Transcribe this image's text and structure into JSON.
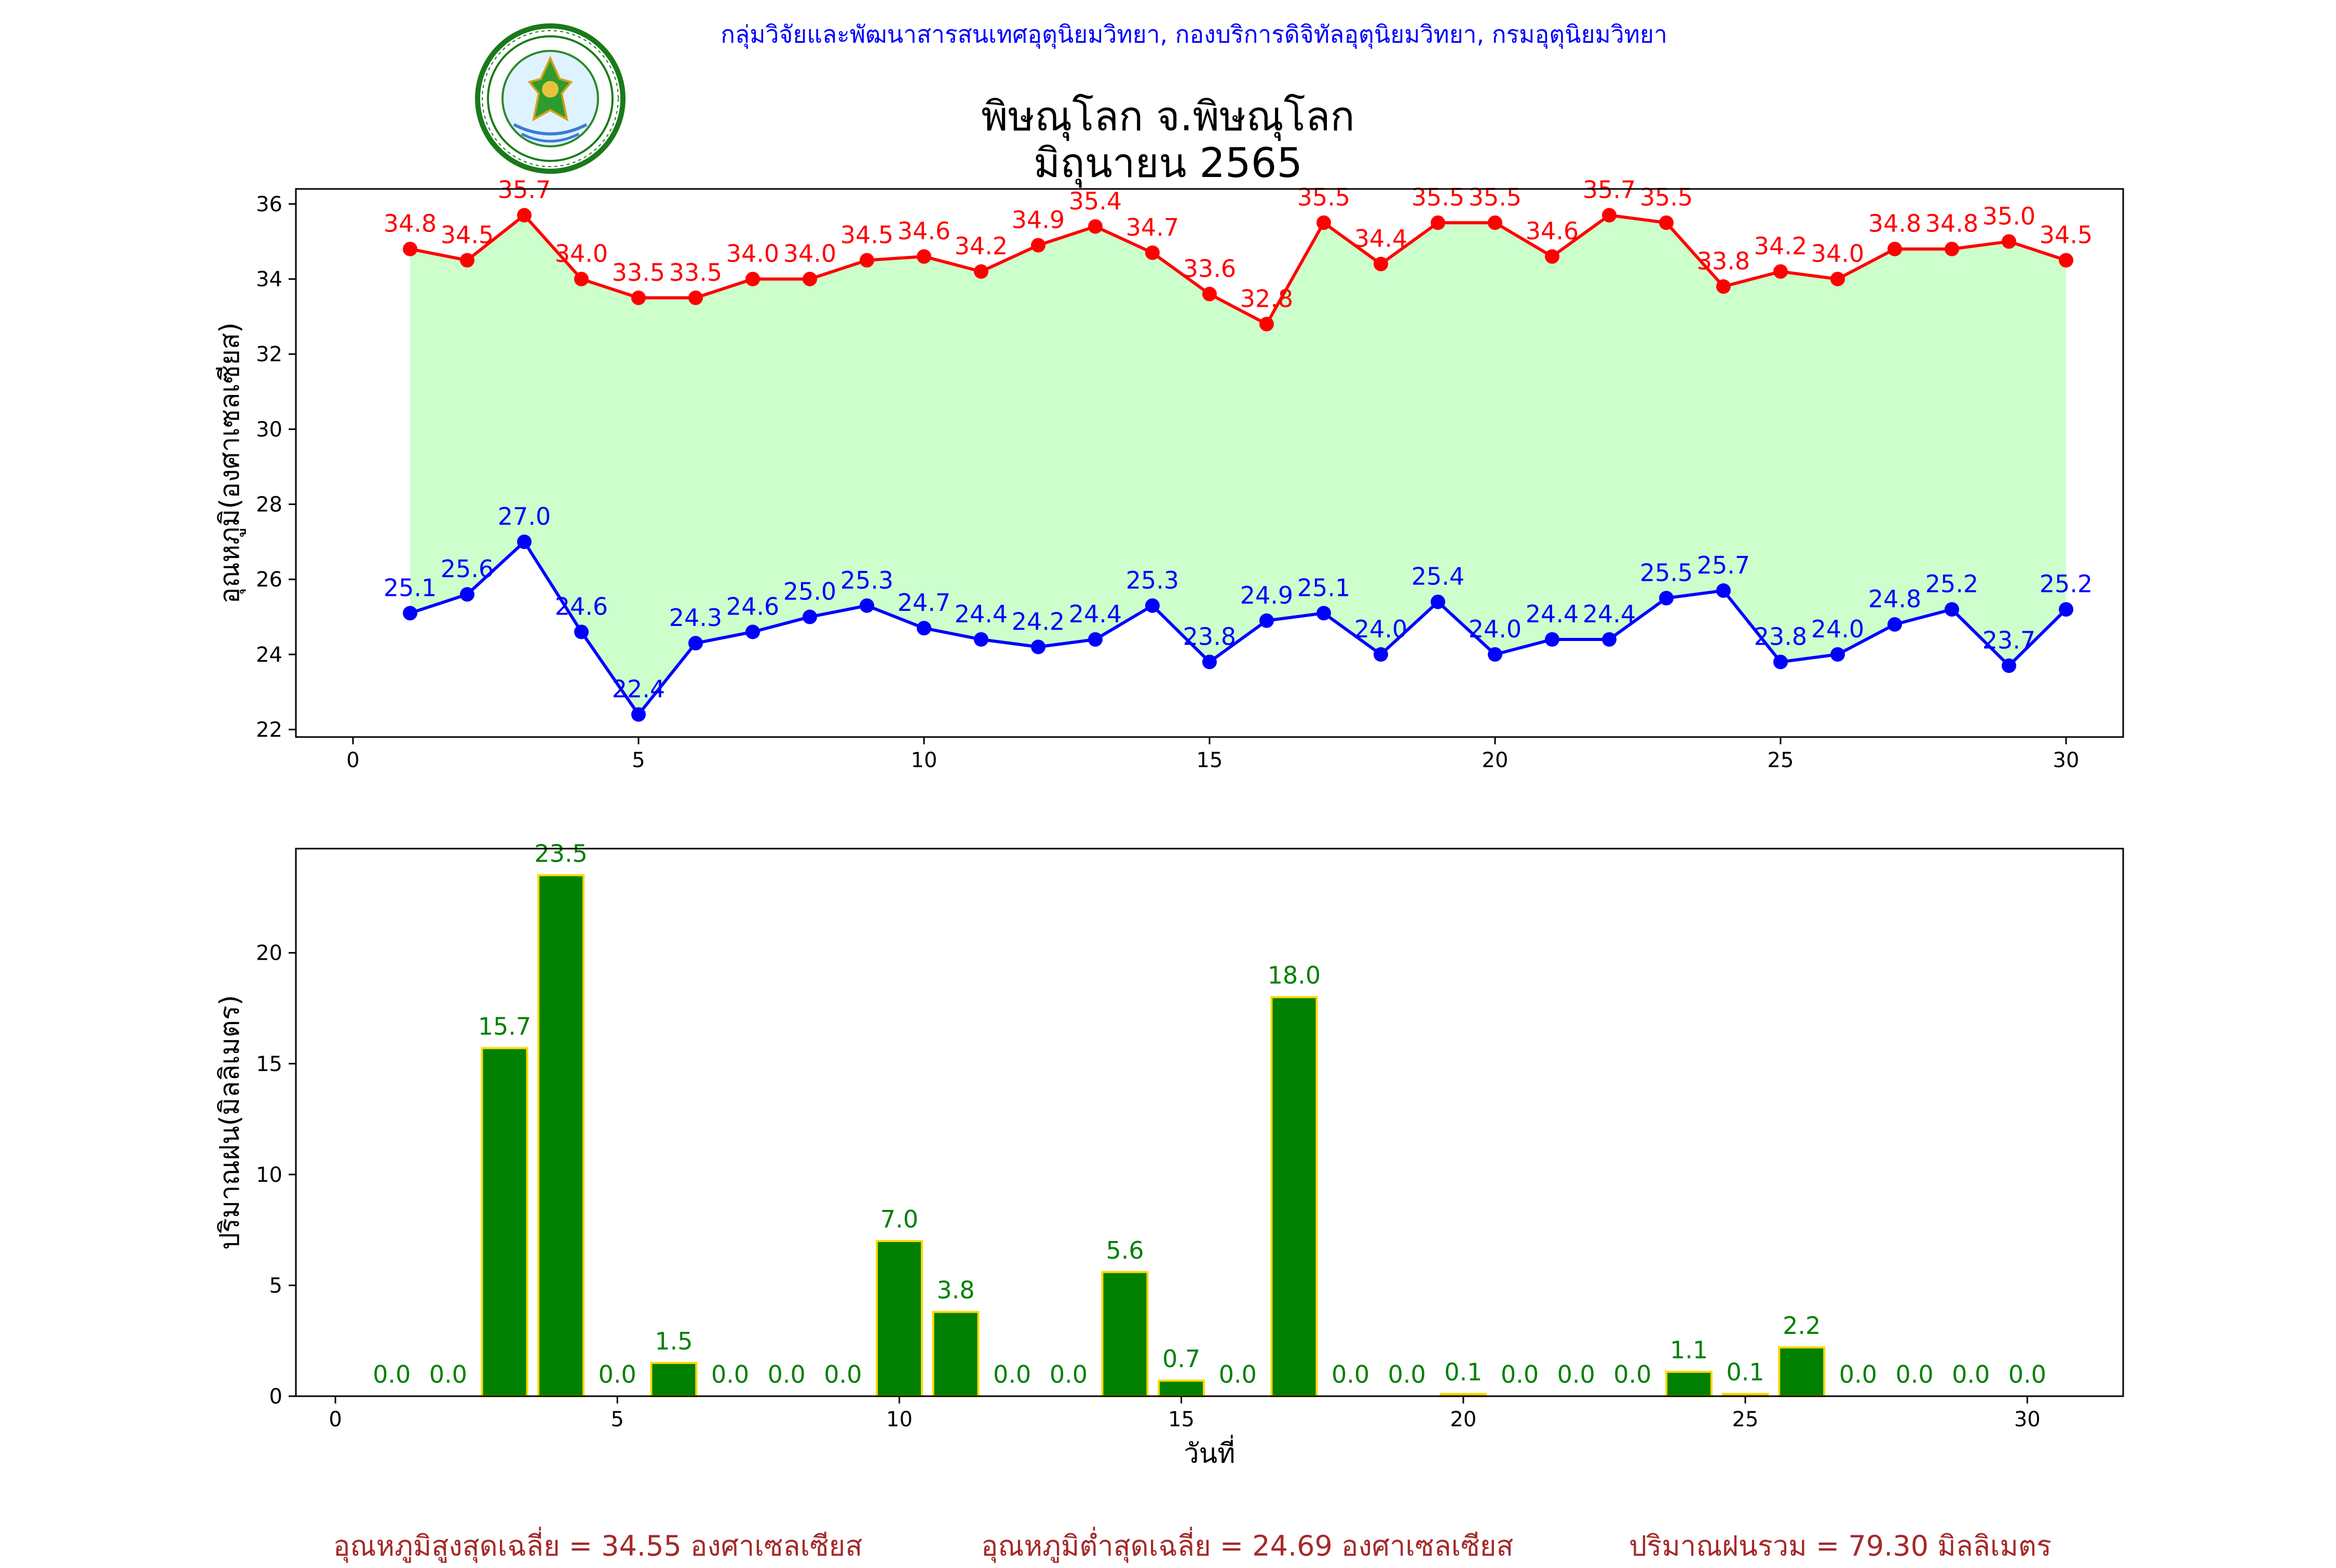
{
  "header": {
    "agency": "กลุ่มวิจัยและพัฒนาสารสนเทศอุตุนิยมวิทยา, กองบริการดิจิทัลอุตุนิยมวิทยา, กรมอุตุนิยมวิทยา",
    "title": "พิษณุโลก จ.พิษณุโลก",
    "subtitle": "มิถุนายน 2565",
    "logo_icon": "meteorological-department-seal-icon",
    "logo_text": "กรมอุตุนิยมวิทยา METEOROLOGICAL DEPARTMENT"
  },
  "colors": {
    "max_line": "#ff0000",
    "min_line": "#0000ff",
    "range_fill": "#ccffcc",
    "rain_bar": "#008000",
    "rain_edge": "#ffd700",
    "rain_label": "#008000",
    "footer_text": "#a52a2a",
    "agency_text": "#0000ff"
  },
  "chart_data": [
    {
      "type": "line",
      "ylabel": "อุณหภูมิ(องศาเซลเซียส)",
      "xlabel": "",
      "xlim": [
        -1,
        31
      ],
      "ylim": [
        21.8,
        36.4
      ],
      "x_ticks": [
        0,
        5,
        10,
        15,
        20,
        25,
        30
      ],
      "y_ticks": [
        22,
        24,
        26,
        28,
        30,
        32,
        34,
        36
      ],
      "x": [
        1,
        2,
        3,
        4,
        5,
        6,
        7,
        8,
        9,
        10,
        11,
        12,
        13,
        14,
        15,
        16,
        17,
        18,
        19,
        20,
        21,
        22,
        23,
        24,
        25,
        26,
        27,
        28,
        29,
        30
      ],
      "fill_between": true,
      "grid": false,
      "series": [
        {
          "key": "max",
          "values": [
            34.8,
            34.5,
            35.7,
            34.0,
            33.5,
            33.5,
            34.0,
            34.0,
            34.5,
            34.6,
            34.2,
            34.9,
            35.4,
            34.7,
            33.6,
            32.8,
            35.5,
            34.4,
            35.5,
            35.5,
            34.6,
            35.7,
            35.5,
            33.8,
            34.2,
            34.0,
            34.8,
            34.8,
            35.0,
            34.5
          ]
        },
        {
          "key": "min",
          "values": [
            25.1,
            25.6,
            27.0,
            24.6,
            22.4,
            24.3,
            24.6,
            25.0,
            25.3,
            24.7,
            24.4,
            24.2,
            24.4,
            25.3,
            23.8,
            24.9,
            25.1,
            24.0,
            25.4,
            24.0,
            24.4,
            24.4,
            25.5,
            25.7,
            23.8,
            24.0,
            24.8,
            25.2,
            23.7,
            25.2
          ]
        }
      ]
    },
    {
      "type": "bar",
      "ylabel": "ปริมาณฝน(มิลลิเมตร)",
      "xlabel": "วันที่",
      "xlim": [
        -0.7,
        31.7
      ],
      "ylim": [
        0,
        24.7
      ],
      "x_ticks": [
        0,
        5,
        10,
        15,
        20,
        25,
        30
      ],
      "y_ticks": [
        0,
        5,
        10,
        15,
        20
      ],
      "categories": [
        1,
        2,
        3,
        4,
        5,
        6,
        7,
        8,
        9,
        10,
        11,
        12,
        13,
        14,
        15,
        16,
        17,
        18,
        19,
        20,
        21,
        22,
        23,
        24,
        25,
        26,
        27,
        28,
        29,
        30
      ],
      "values": [
        0.0,
        0.0,
        15.7,
        23.5,
        0.0,
        1.5,
        0.0,
        0.0,
        0.0,
        7.0,
        3.8,
        0.0,
        0.0,
        5.6,
        0.7,
        0.0,
        18.0,
        0.0,
        0.0,
        0.1,
        0.0,
        0.0,
        0.0,
        1.1,
        0.1,
        2.2,
        0.0,
        0.0,
        0.0,
        0.0
      ],
      "grid": false
    }
  ],
  "footer": {
    "avg_max": "อุณหภูมิสูงสุดเฉลี่ย = 34.55 องศาเซลเซียส",
    "avg_min": "อุณหภูมิต่ำสุดเฉลี่ย = 24.69 องศาเซลเซียส",
    "total_rain": "ปริมาณฝนรวม = 79.30 มิลลิเมตร"
  }
}
